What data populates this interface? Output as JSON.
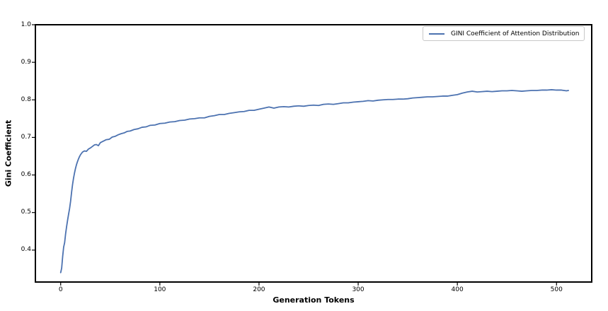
{
  "chart_data": {
    "type": "line",
    "title": "",
    "xlabel": "Generation Tokens",
    "ylabel": "Gini Coefficient",
    "xlim": [
      -25.5,
      535.5
    ],
    "ylim": [
      0.315,
      1.0
    ],
    "grid": false,
    "xticks": [
      {
        "v": 0,
        "label": "0"
      },
      {
        "v": 100,
        "label": "100"
      },
      {
        "v": 200,
        "label": "200"
      },
      {
        "v": 300,
        "label": "300"
      },
      {
        "v": 400,
        "label": "400"
      },
      {
        "v": 500,
        "label": "500"
      }
    ],
    "yticks": [
      {
        "v": 0.4,
        "label": "0.4"
      },
      {
        "v": 0.5,
        "label": "0.5"
      },
      {
        "v": 0.6,
        "label": "0.6"
      },
      {
        "v": 0.7,
        "label": "0.7"
      },
      {
        "v": 0.8,
        "label": "0.8"
      },
      {
        "v": 0.9,
        "label": "0.9"
      },
      {
        "v": 1.0,
        "label": "1.0"
      }
    ],
    "legend": {
      "position": "upper right",
      "entries": [
        {
          "label": "GINI Coefficient of Attention Distribution",
          "color": "#4c72b0"
        }
      ]
    },
    "series": [
      {
        "name": "GINI Coefficient of Attention Distribution",
        "color": "#4c72b0",
        "points": [
          [
            0,
            0.34
          ],
          [
            1,
            0.352
          ],
          [
            2,
            0.383
          ],
          [
            3,
            0.408
          ],
          [
            4,
            0.42
          ],
          [
            5,
            0.444
          ],
          [
            6,
            0.463
          ],
          [
            7,
            0.48
          ],
          [
            8,
            0.496
          ],
          [
            9,
            0.511
          ],
          [
            10,
            0.53
          ],
          [
            11,
            0.554
          ],
          [
            12,
            0.575
          ],
          [
            13,
            0.592
          ],
          [
            14,
            0.606
          ],
          [
            15,
            0.618
          ],
          [
            16,
            0.628
          ],
          [
            17,
            0.636
          ],
          [
            18,
            0.643
          ],
          [
            19,
            0.649
          ],
          [
            20,
            0.654
          ],
          [
            22,
            0.661
          ],
          [
            24,
            0.664
          ],
          [
            26,
            0.663
          ],
          [
            28,
            0.669
          ],
          [
            30,
            0.672
          ],
          [
            32,
            0.676
          ],
          [
            34,
            0.68
          ],
          [
            36,
            0.681
          ],
          [
            38,
            0.678
          ],
          [
            40,
            0.686
          ],
          [
            43,
            0.69
          ],
          [
            46,
            0.694
          ],
          [
            49,
            0.695
          ],
          [
            52,
            0.701
          ],
          [
            55,
            0.703
          ],
          [
            58,
            0.707
          ],
          [
            61,
            0.71
          ],
          [
            64,
            0.712
          ],
          [
            67,
            0.716
          ],
          [
            70,
            0.717
          ],
          [
            74,
            0.721
          ],
          [
            78,
            0.723
          ],
          [
            82,
            0.727
          ],
          [
            86,
            0.728
          ],
          [
            90,
            0.732
          ],
          [
            95,
            0.733
          ],
          [
            100,
            0.737
          ],
          [
            105,
            0.738
          ],
          [
            110,
            0.741
          ],
          [
            115,
            0.742
          ],
          [
            120,
            0.745
          ],
          [
            125,
            0.746
          ],
          [
            130,
            0.749
          ],
          [
            135,
            0.75
          ],
          [
            140,
            0.752
          ],
          [
            145,
            0.752
          ],
          [
            150,
            0.756
          ],
          [
            155,
            0.758
          ],
          [
            160,
            0.761
          ],
          [
            165,
            0.761
          ],
          [
            170,
            0.764
          ],
          [
            175,
            0.766
          ],
          [
            180,
            0.768
          ],
          [
            185,
            0.769
          ],
          [
            190,
            0.772
          ],
          [
            195,
            0.772
          ],
          [
            200,
            0.775
          ],
          [
            205,
            0.778
          ],
          [
            210,
            0.781
          ],
          [
            215,
            0.778
          ],
          [
            220,
            0.781
          ],
          [
            225,
            0.782
          ],
          [
            230,
            0.781
          ],
          [
            235,
            0.783
          ],
          [
            240,
            0.784
          ],
          [
            245,
            0.783
          ],
          [
            250,
            0.785
          ],
          [
            255,
            0.786
          ],
          [
            260,
            0.785
          ],
          [
            265,
            0.788
          ],
          [
            270,
            0.789
          ],
          [
            275,
            0.788
          ],
          [
            280,
            0.79
          ],
          [
            285,
            0.792
          ],
          [
            290,
            0.792
          ],
          [
            295,
            0.794
          ],
          [
            300,
            0.795
          ],
          [
            305,
            0.796
          ],
          [
            310,
            0.798
          ],
          [
            315,
            0.797
          ],
          [
            320,
            0.799
          ],
          [
            325,
            0.8
          ],
          [
            330,
            0.801
          ],
          [
            335,
            0.801
          ],
          [
            340,
            0.802
          ],
          [
            345,
            0.802
          ],
          [
            350,
            0.803
          ],
          [
            355,
            0.805
          ],
          [
            360,
            0.806
          ],
          [
            365,
            0.807
          ],
          [
            370,
            0.808
          ],
          [
            375,
            0.808
          ],
          [
            380,
            0.809
          ],
          [
            385,
            0.81
          ],
          [
            390,
            0.81
          ],
          [
            395,
            0.812
          ],
          [
            400,
            0.814
          ],
          [
            405,
            0.818
          ],
          [
            410,
            0.821
          ],
          [
            415,
            0.823
          ],
          [
            420,
            0.821
          ],
          [
            425,
            0.822
          ],
          [
            430,
            0.823
          ],
          [
            435,
            0.822
          ],
          [
            440,
            0.823
          ],
          [
            445,
            0.824
          ],
          [
            450,
            0.824
          ],
          [
            455,
            0.825
          ],
          [
            460,
            0.824
          ],
          [
            465,
            0.823
          ],
          [
            470,
            0.824
          ],
          [
            475,
            0.825
          ],
          [
            480,
            0.825
          ],
          [
            485,
            0.826
          ],
          [
            490,
            0.826
          ],
          [
            495,
            0.827
          ],
          [
            500,
            0.826
          ],
          [
            505,
            0.826
          ],
          [
            510,
            0.824
          ],
          [
            512,
            0.825
          ]
        ]
      }
    ],
    "style": {
      "line_width": 1.8,
      "spine_color": "#000000",
      "spine_width": 2,
      "tick_length": 4,
      "background": "#ffffff"
    }
  }
}
